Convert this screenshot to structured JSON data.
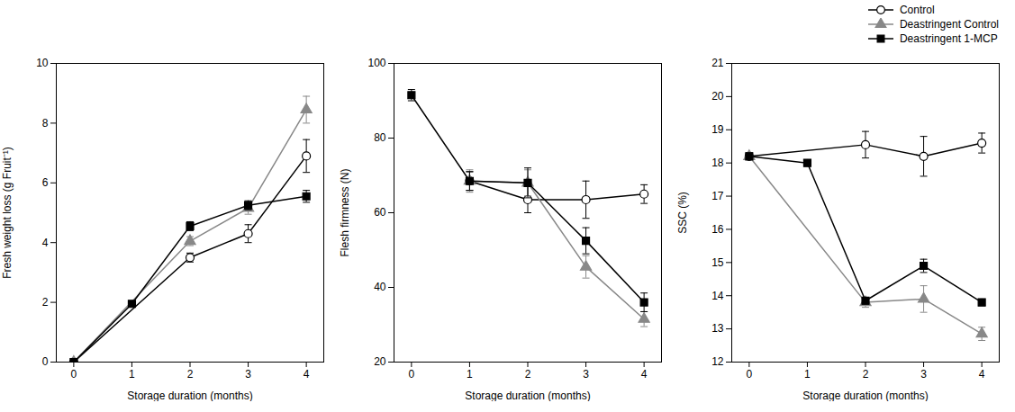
{
  "chart_data": [
    {
      "type": "line",
      "xlabel": "Storage duration (months)",
      "ylabel": "Fresh weight loss (g Fruit⁻¹)",
      "x": [
        0,
        1,
        2,
        3,
        4
      ],
      "xlim": [
        -0.3,
        4.3
      ],
      "xticks": [
        0,
        1,
        2,
        3,
        4
      ],
      "ylim": [
        0,
        10
      ],
      "yticks": [
        0,
        2,
        4,
        6,
        8,
        10
      ],
      "grid": false,
      "series": [
        {
          "name": "Control",
          "color": "#000000",
          "marker": "circle-open",
          "values": [
            0.0,
            null,
            3.5,
            4.3,
            6.9
          ],
          "errors": [
            0.0,
            null,
            0.15,
            0.3,
            0.55
          ]
        },
        {
          "name": "Deastringent Control",
          "color": "#888888",
          "marker": "triangle",
          "values": [
            0.0,
            null,
            4.05,
            5.15,
            8.45
          ],
          "errors": [
            0.0,
            null,
            0.15,
            0.2,
            0.45
          ]
        },
        {
          "name": "Deastringent 1-MCP",
          "color": "#000000",
          "marker": "square",
          "values": [
            0.0,
            1.95,
            4.55,
            5.25,
            5.55
          ],
          "errors": [
            0.0,
            0.05,
            0.15,
            0.15,
            0.2
          ]
        }
      ]
    },
    {
      "type": "line",
      "xlabel": "Storage duration (months)",
      "ylabel": "Flesh firmness (N)",
      "x": [
        0,
        1,
        2,
        3,
        4
      ],
      "xlim": [
        -0.3,
        4.3
      ],
      "xticks": [
        0,
        1,
        2,
        3,
        4
      ],
      "ylim": [
        20,
        100
      ],
      "yticks": [
        20,
        40,
        60,
        80,
        100
      ],
      "grid": false,
      "series": [
        {
          "name": "Control",
          "color": "#000000",
          "marker": "circle-open",
          "values": [
            null,
            68.5,
            63.5,
            63.5,
            65.0
          ],
          "errors": [
            null,
            2.5,
            3.5,
            5.0,
            2.5
          ]
        },
        {
          "name": "Deastringent Control",
          "color": "#888888",
          "marker": "triangle",
          "values": [
            null,
            68.5,
            68.0,
            45.5,
            31.5
          ],
          "errors": [
            null,
            3.0,
            3.5,
            3.0,
            2.0
          ]
        },
        {
          "name": "Deastringent 1-MCP",
          "color": "#000000",
          "marker": "square",
          "values": [
            91.5,
            68.5,
            68.0,
            52.5,
            36.0
          ],
          "errors": [
            1.5,
            2.5,
            4.0,
            3.5,
            2.5
          ]
        }
      ]
    },
    {
      "type": "line",
      "xlabel": "Storage duration (months)",
      "ylabel": "SSC (%)",
      "x": [
        0,
        1,
        2,
        3,
        4
      ],
      "xlim": [
        -0.3,
        4.3
      ],
      "xticks": [
        0,
        1,
        2,
        3,
        4
      ],
      "ylim": [
        12,
        21
      ],
      "yticks": [
        12,
        13,
        14,
        15,
        16,
        17,
        18,
        19,
        20,
        21
      ],
      "grid": false,
      "legend": "upper right",
      "series": [
        {
          "name": "Control",
          "color": "#000000",
          "marker": "circle-open",
          "values": [
            18.2,
            null,
            18.55,
            18.2,
            18.6
          ],
          "errors": [
            0.1,
            null,
            0.4,
            0.6,
            0.3
          ]
        },
        {
          "name": "Deastringent Control",
          "color": "#888888",
          "marker": "triangle",
          "values": [
            18.2,
            null,
            13.8,
            13.9,
            12.85
          ],
          "errors": [
            0.1,
            null,
            0.15,
            0.4,
            0.2
          ]
        },
        {
          "name": "Deastringent 1-MCP",
          "color": "#000000",
          "marker": "square",
          "values": [
            18.2,
            18.0,
            13.85,
            14.9,
            13.8
          ],
          "errors": [
            0.1,
            0.1,
            0.1,
            0.2,
            0.1
          ]
        }
      ]
    }
  ]
}
